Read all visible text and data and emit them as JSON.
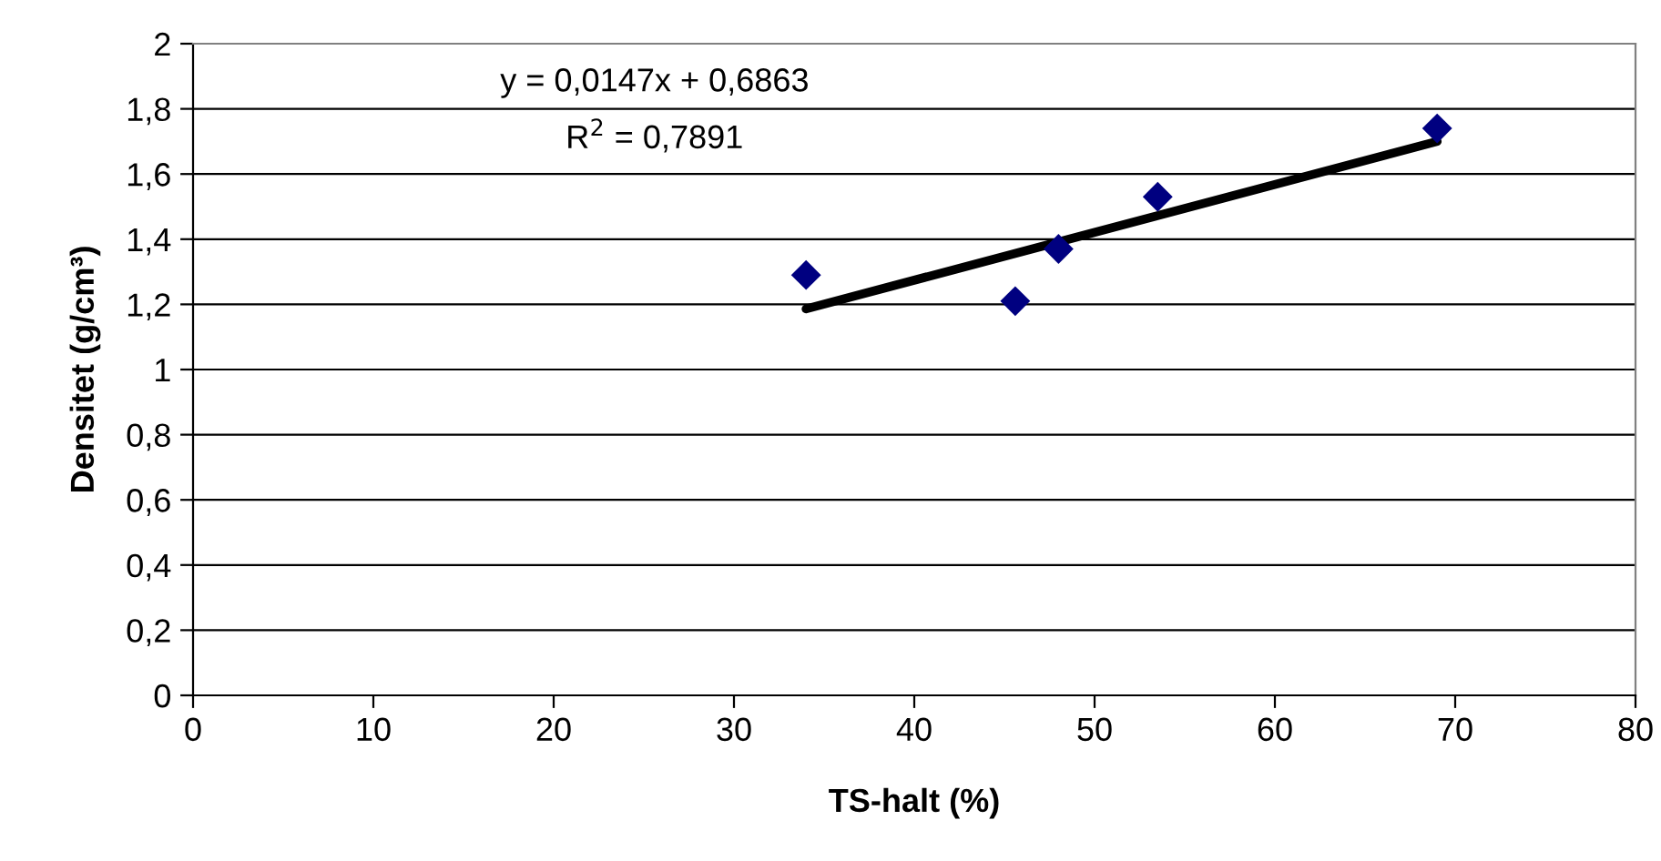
{
  "chart_data": {
    "type": "scatter",
    "xlabel": "TS-halt (%)",
    "ylabel": "Densitet (g/cm³)",
    "series": [
      {
        "color": "#000080",
        "marker": "diamond",
        "x": [
          34,
          45.6,
          48,
          53.5,
          69
        ],
        "values": [
          1.29,
          1.21,
          1.37,
          1.53,
          1.74
        ]
      },
      {
        "type": "line",
        "color": "#000000",
        "marker": "none",
        "line_style": "solid",
        "x": [
          34,
          69
        ],
        "values": [
          1.186,
          1.7
        ]
      }
    ],
    "annotations": [
      "y = 0,0147x + 0,6863",
      "R$^{2}$ = 0,7891"
    ],
    "xlim": [
      0,
      80
    ],
    "xticks": [
      0,
      10,
      20,
      30,
      40,
      50,
      60,
      70,
      80
    ],
    "ylim": [
      0,
      2
    ],
    "yticks": [
      0,
      {
        "value": 0.2,
        "label": "0,2"
      },
      {
        "value": 0.4,
        "label": "0,4"
      },
      {
        "value": 0.6,
        "label": "0,6"
      },
      {
        "value": 0.8,
        "label": "0,8"
      },
      1,
      {
        "value": 1.2,
        "label": "1,2"
      },
      {
        "value": 1.4,
        "label": "1,4"
      },
      {
        "value": 1.6,
        "label": "1,6"
      },
      {
        "value": 1.8,
        "label": "1,8"
      },
      2
    ],
    "grid": "y",
    "legend": false
  }
}
